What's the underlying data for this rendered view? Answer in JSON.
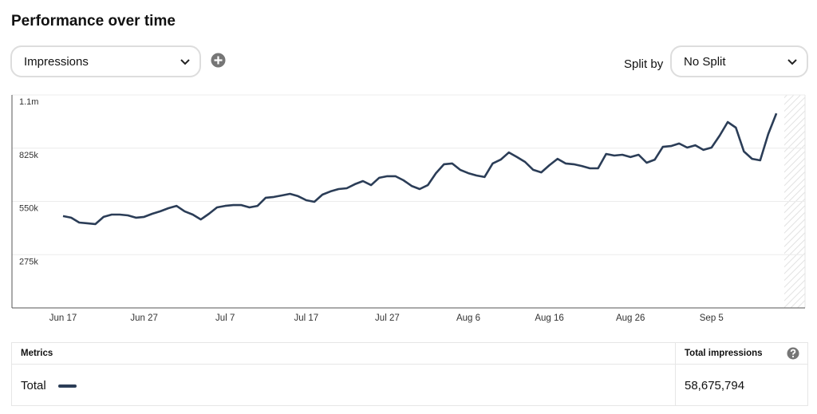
{
  "header": {
    "title": "Performance over time"
  },
  "controls": {
    "metric": "Impressions",
    "split_label": "Split by",
    "split": "No Split"
  },
  "chart_data": {
    "type": "line",
    "categories": [
      "Jun 17",
      null,
      null,
      null,
      null,
      null,
      null,
      null,
      null,
      null,
      "Jun 27",
      null,
      null,
      null,
      null,
      null,
      null,
      null,
      null,
      null,
      "Jul 7",
      null,
      null,
      null,
      null,
      null,
      null,
      null,
      null,
      null,
      "Jul 17",
      null,
      null,
      null,
      null,
      null,
      null,
      null,
      null,
      null,
      "Jul 27",
      null,
      null,
      null,
      null,
      null,
      null,
      null,
      null,
      null,
      "Aug 6",
      null,
      null,
      null,
      null,
      null,
      null,
      null,
      null,
      null,
      "Aug 16",
      null,
      null,
      null,
      null,
      null,
      null,
      null,
      null,
      null,
      "Aug 26",
      null,
      null,
      null,
      null,
      null,
      null,
      null,
      null,
      null,
      "Sep 5",
      null,
      null,
      null,
      null,
      null,
      null,
      null,
      null
    ],
    "series": [
      {
        "name": "Total",
        "color": "#2b3d57",
        "values": [
          474000,
          466000,
          441000,
          437000,
          433000,
          470000,
          482000,
          482000,
          478000,
          466000,
          470000,
          486000,
          499000,
          515000,
          527000,
          499000,
          482000,
          457000,
          486000,
          519000,
          527000,
          531000,
          531000,
          519000,
          527000,
          569000,
          573000,
          581000,
          589000,
          577000,
          556000,
          548000,
          585000,
          602000,
          614000,
          618000,
          639000,
          655000,
          634000,
          672000,
          680000,
          680000,
          659000,
          630000,
          614000,
          634000,
          696000,
          742000,
          746000,
          713000,
          696000,
          684000,
          676000,
          746000,
          766000,
          803000,
          779000,
          754000,
          713000,
          700000,
          737000,
          770000,
          746000,
          742000,
          733000,
          721000,
          721000,
          795000,
          787000,
          791000,
          779000,
          791000,
          750000,
          766000,
          832000,
          836000,
          849000,
          828000,
          840000,
          816000,
          828000,
          890000,
          960000,
          931000,
          808000,
          770000,
          762000,
          898000,
          1005000
        ]
      }
    ],
    "ylim": [
      0,
      1100000
    ],
    "yticks": [
      {
        "value": 275000,
        "label": "275k"
      },
      {
        "value": 550000,
        "label": "550k"
      },
      {
        "value": 825000,
        "label": "825k"
      },
      {
        "value": 1100000,
        "label": "1.1m"
      }
    ],
    "grid": true
  },
  "metrics_table": {
    "headers": [
      "Metrics",
      "Total impressions"
    ],
    "total": "58,675,794"
  }
}
